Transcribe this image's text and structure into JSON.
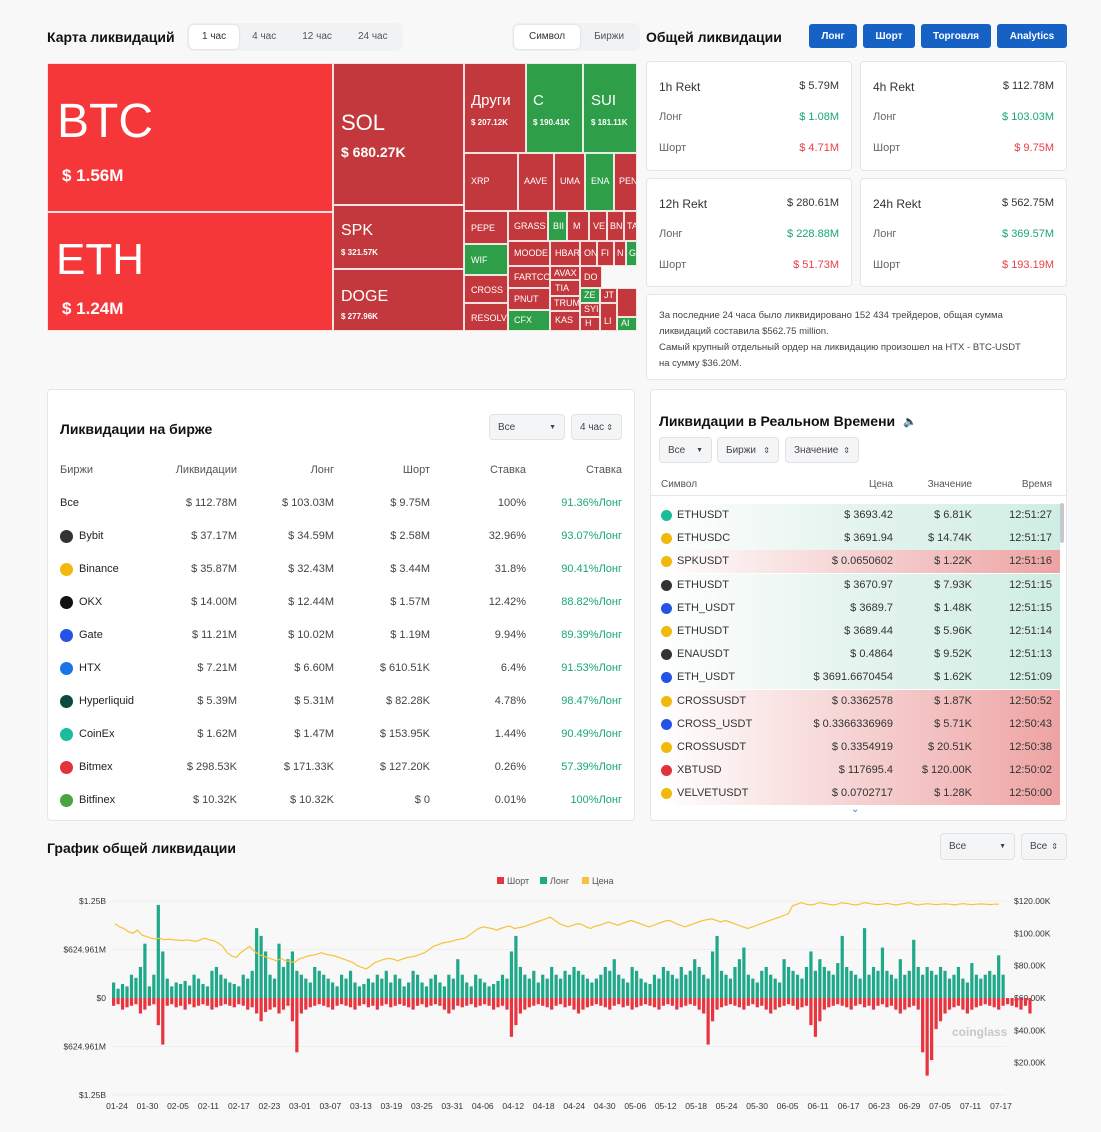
{
  "header": {
    "map_title": "Карта ликвидаций",
    "time_tabs": [
      "1 час",
      "4 час",
      "12 час",
      "24 час"
    ],
    "mode_tabs": [
      "Символ",
      "Биржи"
    ],
    "total_title": "Общей ликвидации",
    "buttons": [
      "Лонг",
      "Шорт",
      "Торговля",
      "Analytics"
    ]
  },
  "treemap": [
    {
      "name": "BTC",
      "value": "$ 1.56M"
    },
    {
      "name": "ETH",
      "value": "$ 1.24M"
    },
    {
      "name": "SOL",
      "value": "$ 680.27K"
    },
    {
      "name": "SPK",
      "value": "$ 321.57K"
    },
    {
      "name": "DOGE",
      "value": "$ 277.96K"
    },
    {
      "name": "Други",
      "value": "$ 207.12K"
    },
    {
      "name": "C",
      "value": "$ 190.41K"
    },
    {
      "name": "SUI",
      "value": "$ 181.11K"
    },
    {
      "name": "XRP"
    },
    {
      "name": "AAVE"
    },
    {
      "name": "UMA"
    },
    {
      "name": "ENA"
    },
    {
      "name": "PEN"
    },
    {
      "name": "PEPE"
    },
    {
      "name": "GRASS"
    },
    {
      "name": "BII"
    },
    {
      "name": "M"
    },
    {
      "name": "VE"
    },
    {
      "name": "BN"
    },
    {
      "name": "TA"
    },
    {
      "name": "WIF"
    },
    {
      "name": "MOODE"
    },
    {
      "name": "HBAR"
    },
    {
      "name": "ON"
    },
    {
      "name": "FI"
    },
    {
      "name": "N"
    },
    {
      "name": "G"
    },
    {
      "name": "FARTCO"
    },
    {
      "name": "AVAX"
    },
    {
      "name": "DO"
    },
    {
      "name": "CROSS"
    },
    {
      "name": "TIA"
    },
    {
      "name": "PNUT"
    },
    {
      "name": "ZE"
    },
    {
      "name": "JT"
    },
    {
      "name": "TRUM"
    },
    {
      "name": "SYI"
    },
    {
      "name": "RESOLV"
    },
    {
      "name": "CFX"
    },
    {
      "name": "KAS"
    },
    {
      "name": "H"
    },
    {
      "name": "LI"
    },
    {
      "name": "AI"
    }
  ],
  "rekt": [
    {
      "title": "1h Rekt",
      "total": "$ 5.79M",
      "long_label": "Лонг",
      "long": "$ 1.08M",
      "short_label": "Шорт",
      "short": "$ 4.71M"
    },
    {
      "title": "4h Rekt",
      "total": "$ 112.78M",
      "long_label": "Лонг",
      "long": "$ 103.03M",
      "short_label": "Шорт",
      "short": "$ 9.75M"
    },
    {
      "title": "12h Rekt",
      "total": "$ 280.61M",
      "long_label": "Лонг",
      "long": "$ 228.88M",
      "short_label": "Шорт",
      "short": "$ 51.73M"
    },
    {
      "title": "24h Rekt",
      "total": "$ 562.75M",
      "long_label": "Лонг",
      "long": "$ 369.57M",
      "short_label": "Шорт",
      "short": "$ 193.19M"
    }
  ],
  "summary": {
    "line1": "За последние 24 часа было ликвидировано 152 434 трейдеров, общая сумма",
    "line2": "ликвидаций составила $562.75 million.",
    "line3": "Самый крупный отдельный ордер на ликвидацию произошел на HTX - BTC-USDT",
    "line4": "на сумму $36.20M."
  },
  "exchange": {
    "title": "Ликвидации на бирже",
    "filter_all": "Все",
    "filter_time": "4 час",
    "headers": [
      "Биржи",
      "Ликвидации",
      "Лонг",
      "Шорт",
      "Ставка",
      "Ставка"
    ],
    "rows": [
      {
        "name": "Все",
        "liq": "$ 112.78M",
        "long": "$ 103.03M",
        "short": "$ 9.75M",
        "rate": "100%",
        "rate2": "91.36%Лонг"
      },
      {
        "name": "Bybit",
        "liq": "$ 37.17M",
        "long": "$ 34.59M",
        "short": "$ 2.58M",
        "rate": "32.96%",
        "rate2": "93.07%Лонг"
      },
      {
        "name": "Binance",
        "liq": "$ 35.87M",
        "long": "$ 32.43M",
        "short": "$ 3.44M",
        "rate": "31.8%",
        "rate2": "90.41%Лонг"
      },
      {
        "name": "OKX",
        "liq": "$ 14.00M",
        "long": "$ 12.44M",
        "short": "$ 1.57M",
        "rate": "12.42%",
        "rate2": "88.82%Лонг"
      },
      {
        "name": "Gate",
        "liq": "$ 11.21M",
        "long": "$ 10.02M",
        "short": "$ 1.19M",
        "rate": "9.94%",
        "rate2": "89.39%Лонг"
      },
      {
        "name": "HTX",
        "liq": "$ 7.21M",
        "long": "$ 6.60M",
        "short": "$ 610.51K",
        "rate": "6.4%",
        "rate2": "91.53%Лонг"
      },
      {
        "name": "Hyperliquid",
        "liq": "$ 5.39M",
        "long": "$ 5.31M",
        "short": "$ 82.28K",
        "rate": "4.78%",
        "rate2": "98.47%Лонг"
      },
      {
        "name": "CoinEx",
        "liq": "$ 1.62M",
        "long": "$ 1.47M",
        "short": "$ 153.95K",
        "rate": "1.44%",
        "rate2": "90.49%Лонг"
      },
      {
        "name": "Bitmex",
        "liq": "$ 298.53K",
        "long": "$ 171.33K",
        "short": "$ 127.20K",
        "rate": "0.26%",
        "rate2": "57.39%Лонг"
      },
      {
        "name": "Bitfinex",
        "liq": "$ 10.32K",
        "long": "$ 10.32K",
        "short": "$ 0",
        "rate": "0.01%",
        "rate2": "100%Лонг"
      }
    ],
    "icon_colors": {
      "Bybit": "#333333",
      "Binance": "#f0b90b",
      "OKX": "#111111",
      "Gate": "#2354e6",
      "HTX": "#1b74e4",
      "Hyperliquid": "#0b4a3f",
      "CoinEx": "#1bbc9c",
      "Bitmex": "#e0333c",
      "Bitfinex": "#49a442"
    }
  },
  "realtime": {
    "title": "Ликвидации в Реальном Времени",
    "filters": [
      "Все",
      "Биржи",
      "Значение"
    ],
    "headers": [
      "Символ",
      "Цена",
      "Значение",
      "Время"
    ],
    "rows": [
      {
        "sym": "ETHUSDT",
        "icon": "coinex-icon",
        "price": "$ 3693.42",
        "val": "$ 6.81K",
        "time": "12:51:27",
        "side": "long"
      },
      {
        "sym": "ETHUSDC",
        "icon": "binance-icon",
        "price": "$ 3691.94",
        "val": "$ 14.74K",
        "time": "12:51:17",
        "side": "long"
      },
      {
        "sym": "SPKUSDT",
        "icon": "binance-icon",
        "price": "$ 0.0650602",
        "val": "$ 1.22K",
        "time": "12:51:16",
        "side": "short"
      },
      {
        "sym": "ETHUSDT",
        "icon": "bybit-icon",
        "price": "$ 3670.97",
        "val": "$ 7.93K",
        "time": "12:51:15",
        "side": "long"
      },
      {
        "sym": "ETH_USDT",
        "icon": "gate-icon",
        "price": "$ 3689.7",
        "val": "$ 1.48K",
        "time": "12:51:15",
        "side": "long"
      },
      {
        "sym": "ETHUSDT",
        "icon": "binance-icon",
        "price": "$ 3689.44",
        "val": "$ 5.96K",
        "time": "12:51:14",
        "side": "long"
      },
      {
        "sym": "ENAUSDT",
        "icon": "bybit-icon",
        "price": "$ 0.4864",
        "val": "$ 9.52K",
        "time": "12:51:13",
        "side": "long"
      },
      {
        "sym": "ETH_USDT",
        "icon": "gate-icon",
        "price": "$ 3691.6670454",
        "val": "$ 1.62K",
        "time": "12:51:09",
        "side": "long"
      },
      {
        "sym": "CROSSUSDT",
        "icon": "binance-icon",
        "price": "$ 0.3362578",
        "val": "$ 1.87K",
        "time": "12:50:52",
        "side": "short"
      },
      {
        "sym": "CROSS_USDT",
        "icon": "gate-icon",
        "price": "$ 0.3366336969",
        "val": "$ 5.71K",
        "time": "12:50:43",
        "side": "short"
      },
      {
        "sym": "CROSSUSDT",
        "icon": "binance-icon",
        "price": "$ 0.3354919",
        "val": "$ 20.51K",
        "time": "12:50:38",
        "side": "short"
      },
      {
        "sym": "XBTUSD",
        "icon": "bitmex-icon",
        "price": "$ 117695.4",
        "val": "$ 120.00K",
        "time": "12:50:02",
        "side": "short"
      },
      {
        "sym": "VELVETUSDT",
        "icon": "binance-icon",
        "price": "$ 0.0702717",
        "val": "$ 1.28K",
        "time": "12:50:00",
        "side": "short"
      }
    ]
  },
  "chart_data": {
    "type": "bar",
    "title": "График общей ликвидации",
    "filters": [
      "Все",
      "Все"
    ],
    "legend": [
      "Шорт",
      "Лонг",
      "Цена"
    ],
    "colors": {
      "short": "#e8343e",
      "long": "#1fa98a",
      "price": "#f5c33b"
    },
    "left_ticks": [
      "$1.25B",
      "$624.961M",
      "$0",
      "$624.961M",
      "$1.25B"
    ],
    "right_ticks": [
      "$120.00K",
      "$100.00K",
      "$80.00K",
      "$60.00K",
      "$40.00K",
      "$20.00K"
    ],
    "x_ticks": [
      "01-24",
      "01-30",
      "02-05",
      "02-11",
      "02-17",
      "02-23",
      "03-01",
      "03-07",
      "03-13",
      "03-19",
      "03-25",
      "03-31",
      "04-06",
      "04-12",
      "04-18",
      "04-24",
      "04-30",
      "05-06",
      "05-12",
      "05-18",
      "05-24",
      "05-30",
      "06-05",
      "06-11",
      "06-17",
      "06-23",
      "06-29",
      "07-05",
      "07-11",
      "07-17"
    ],
    "ylim_left": [
      -1250,
      1250
    ],
    "ylim_right": [
      0,
      120000
    ],
    "unit_left": "$M",
    "watermark": "coinglass",
    "long_values": [
      200,
      120,
      180,
      150,
      300,
      260,
      400,
      700,
      150,
      300,
      1200,
      600,
      250,
      150,
      200,
      180,
      220,
      160,
      300,
      250,
      180,
      150,
      350,
      400,
      300,
      250,
      200,
      180,
      150,
      300,
      250,
      350,
      900,
      800,
      600,
      300,
      250,
      700,
      400,
      500,
      600,
      350,
      300,
      250,
      200,
      400,
      350,
      300,
      250,
      200,
      150,
      300,
      250,
      350,
      200,
      150,
      180,
      250,
      200,
      300,
      250,
      350,
      200,
      300,
      250,
      150,
      200,
      350,
      300,
      200,
      150,
      250,
      300,
      200,
      150,
      300,
      250,
      500,
      300,
      200,
      150,
      300,
      250,
      200,
      150,
      180,
      220,
      300,
      250,
      600,
      800,
      400,
      300,
      250,
      350,
      200,
      300,
      250,
      400,
      300,
      250,
      350,
      300,
      400,
      350,
      300,
      250,
      200,
      250,
      300,
      400,
      350,
      500,
      300,
      250,
      200,
      400,
      350,
      250,
      200,
      180,
      300,
      250,
      400,
      350,
      300,
      250,
      400,
      300,
      350,
      500,
      400,
      300,
      250,
      600,
      800,
      350,
      300,
      250,
      400,
      500,
      650,
      300,
      250,
      200,
      350,
      400,
      300,
      250,
      200,
      500,
      400,
      350,
      300,
      250,
      400,
      600,
      350,
      500,
      400,
      350,
      300,
      450,
      800,
      400,
      350,
      300,
      250,
      900,
      300,
      400,
      350,
      650,
      350,
      300,
      250,
      500,
      300,
      350,
      750,
      400,
      300,
      400,
      350,
      300,
      400,
      350,
      250,
      300,
      400,
      250,
      200,
      450,
      300,
      250,
      300,
      350,
      300,
      550,
      300
    ],
    "short_values": [
      -100,
      -80,
      -150,
      -120,
      -100,
      -80,
      -200,
      -150,
      -100,
      -80,
      -350,
      -600,
      -100,
      -80,
      -120,
      -100,
      -150,
      -80,
      -120,
      -100,
      -80,
      -100,
      -150,
      -120,
      -100,
      -80,
      -100,
      -120,
      -80,
      -100,
      -150,
      -120,
      -200,
      -300,
      -180,
      -150,
      -120,
      -200,
      -150,
      -100,
      -300,
      -700,
      -200,
      -150,
      -120,
      -100,
      -80,
      -100,
      -120,
      -150,
      -100,
      -80,
      -100,
      -120,
      -150,
      -100,
      -80,
      -120,
      -100,
      -150,
      -100,
      -80,
      -120,
      -100,
      -80,
      -100,
      -120,
      -150,
      -100,
      -80,
      -120,
      -100,
      -80,
      -100,
      -150,
      -200,
      -150,
      -100,
      -120,
      -100,
      -80,
      -120,
      -100,
      -80,
      -100,
      -150,
      -120,
      -100,
      -150,
      -500,
      -350,
      -200,
      -150,
      -120,
      -100,
      -80,
      -100,
      -120,
      -150,
      -100,
      -80,
      -120,
      -100,
      -150,
      -200,
      -150,
      -120,
      -100,
      -80,
      -100,
      -120,
      -150,
      -100,
      -80,
      -120,
      -100,
      -150,
      -120,
      -100,
      -80,
      -100,
      -120,
      -150,
      -100,
      -80,
      -100,
      -150,
      -120,
      -100,
      -80,
      -100,
      -150,
      -200,
      -600,
      -300,
      -150,
      -120,
      -100,
      -80,
      -100,
      -120,
      -150,
      -100,
      -80,
      -120,
      -100,
      -150,
      -200,
      -150,
      -120,
      -100,
      -80,
      -100,
      -150,
      -120,
      -100,
      -350,
      -500,
      -300,
      -150,
      -120,
      -100,
      -80,
      -100,
      -120,
      -150,
      -100,
      -80,
      -120,
      -100,
      -150,
      -100,
      -80,
      -120,
      -100,
      -150,
      -200,
      -150,
      -120,
      -100,
      -150,
      -700,
      -1000,
      -800,
      -400,
      -300,
      -200,
      -150,
      -120,
      -100,
      -150,
      -200,
      -150,
      -120,
      -100,
      -80,
      -100,
      -120,
      -150,
      -100,
      -80,
      -100,
      -120,
      -150,
      -100,
      -200
    ],
    "price_values": [
      106000,
      104000,
      103000,
      101000,
      100000,
      102000,
      99000,
      98000,
      97000,
      96500,
      97000,
      96000,
      96500,
      96000,
      95800,
      95500,
      96000,
      95500,
      95000,
      96000,
      97000,
      96000,
      95500,
      94000,
      92000,
      88000,
      86000,
      85000,
      88000,
      90000,
      92000,
      89000,
      87000,
      86000,
      85000,
      84000,
      83000,
      84500,
      83000,
      82500,
      82000,
      84000,
      85000,
      86000,
      86500,
      87000,
      88000,
      87000,
      86500,
      86000,
      85000,
      84000,
      83000,
      82000,
      80000,
      79000,
      78000,
      80000,
      82000,
      83000,
      84000,
      84500,
      84000,
      83000,
      84000,
      85000,
      85500,
      86000,
      87000,
      88000,
      90000,
      92000,
      93000,
      94000,
      94500,
      95000,
      96000,
      96500,
      97000,
      99000,
      101000,
      103000,
      104000,
      103500,
      103000,
      102000,
      103000,
      104000,
      104500,
      103000,
      103500,
      104000,
      105000,
      106000,
      107000,
      108000,
      109000,
      110000,
      108000,
      106000,
      105000,
      104000,
      105000,
      106000,
      105500,
      104000,
      103000,
      104500,
      105000,
      106000,
      107000,
      106000,
      105000,
      106000,
      107000,
      108000,
      107000,
      106000,
      105000,
      104000,
      105000,
      106000,
      107000,
      108000,
      107500,
      106000,
      105000,
      104000,
      105000,
      106000,
      107000,
      108000,
      108500,
      109000,
      108000,
      107000,
      108000,
      107000,
      106000,
      105000,
      104000,
      103000,
      104000,
      105000,
      106000,
      107000,
      108000,
      109000,
      110000,
      111000,
      112000,
      117000,
      118000,
      119000,
      118000,
      117500,
      118000,
      119000,
      118500,
      118000,
      117500,
      118000,
      119000,
      118500,
      118000,
      117500,
      118000,
      119000,
      118500,
      118000,
      117800,
      118000,
      118500,
      118000,
      117500,
      118000,
      118500,
      119000,
      118000,
      117500,
      118000,
      118300,
      118000,
      117800,
      118000,
      118200,
      118000,
      117600,
      118000,
      118400,
      118000,
      117700,
      118000,
      118200,
      118000,
      117800,
      118000,
      118100
    ]
  }
}
